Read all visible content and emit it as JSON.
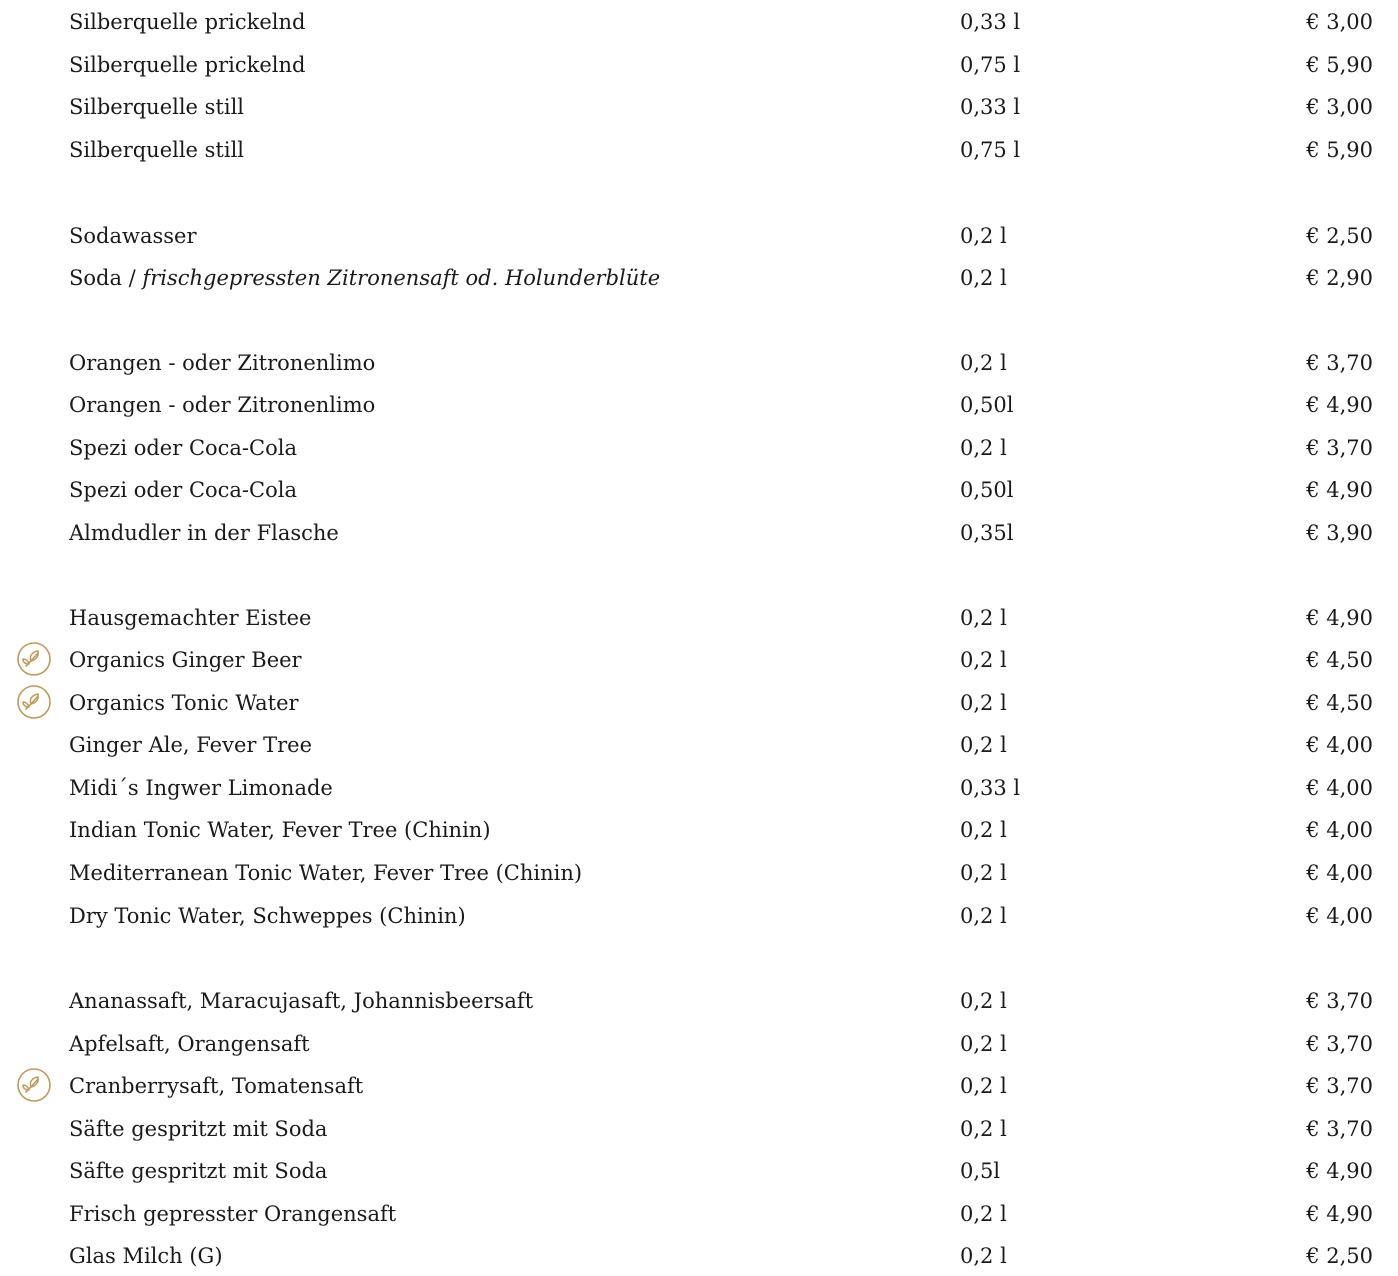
{
  "colors": {
    "text": "#1a1a1a",
    "organic_icon": "#c19a5b"
  },
  "icons": {
    "organic": "leaf-circle-icon"
  },
  "items": [
    {
      "name": "Silberquelle prickelnd",
      "volume": "0,33 l",
      "price": "€ 3,00"
    },
    {
      "name": "Silberquelle prickelnd",
      "volume": "0,75 l",
      "price": "€ 5,90"
    },
    {
      "name": "Silberquelle still",
      "volume": "0,33 l",
      "price": "€ 3,00"
    },
    {
      "name": "Silberquelle still",
      "volume": "0,75 l",
      "price": "€ 5,90"
    },
    {
      "name": "Sodawasser",
      "volume": "0,2 l",
      "price": "€ 2,50"
    },
    {
      "name": "Soda / ",
      "name_italic": "frischgepressten Zitronensaft od. Holunderblüte",
      "volume": "0,2 l",
      "price": "€ 2,90"
    },
    {
      "name": "Orangen - oder Zitronenlimo",
      "volume": "0,2 l",
      "price": "€ 3,70"
    },
    {
      "name": "Orangen - oder Zitronenlimo",
      "volume": "0,50l",
      "price": "€ 4,90"
    },
    {
      "name": "Spezi oder Coca-Cola",
      "volume": "0,2 l",
      "price": "€ 3,70"
    },
    {
      "name": "Spezi oder Coca-Cola",
      "volume": "0,50l",
      "price": "€ 4,90"
    },
    {
      "name": "Almdudler in der Flasche",
      "volume": "0,35l",
      "price": "€ 3,90"
    },
    {
      "name": "Hausgemachter Eistee",
      "volume": "0,2 l",
      "price": "€ 4,90"
    },
    {
      "name": "Organics Ginger Beer",
      "volume": "0,2 l",
      "price": "€ 4,50",
      "organic": true
    },
    {
      "name": "Organics Tonic Water",
      "volume": "0,2 l",
      "price": "€ 4,50",
      "organic": true
    },
    {
      "name": "Ginger Ale, Fever Tree",
      "volume": "0,2 l",
      "price": "€ 4,00"
    },
    {
      "name": "Midi´s Ingwer Limonade",
      "volume": "0,33 l",
      "price": "€ 4,00"
    },
    {
      "name": "Indian Tonic Water, Fever Tree (Chinin)",
      "volume": "0,2 l",
      "price": "€ 4,00"
    },
    {
      "name": "Mediterranean Tonic Water, Fever Tree (Chinin)",
      "volume": "0,2 l",
      "price": "€ 4,00"
    },
    {
      "name": "Dry Tonic Water, Schweppes (Chinin)",
      "volume": "0,2 l",
      "price": "€ 4,00"
    },
    {
      "name": "Ananassaft, Maracujasaft, Johannisbeersaft",
      "volume": "0,2 l",
      "price": "€ 3,70"
    },
    {
      "name": "Apfelsaft, Orangensaft",
      "volume": "0,2 l",
      "price": "€ 3,70"
    },
    {
      "name": "Cranberrysaft, Tomatensaft",
      "volume": "0,2 l",
      "price": "€ 3,70",
      "organic": true
    },
    {
      "name": "Säfte gespritzt mit Soda",
      "volume": "0,2 l",
      "price": "€ 3,70"
    },
    {
      "name": "Säfte gespritzt mit Soda",
      "volume": "0,5l",
      "price": "€ 4,90"
    },
    {
      "name": "Frisch gepresster Orangensaft",
      "volume": "0,2 l",
      "price": "€ 4,90"
    },
    {
      "name": "Glas Milch (G)",
      "volume": "0,2 l",
      "price": "€ 2,50"
    }
  ]
}
